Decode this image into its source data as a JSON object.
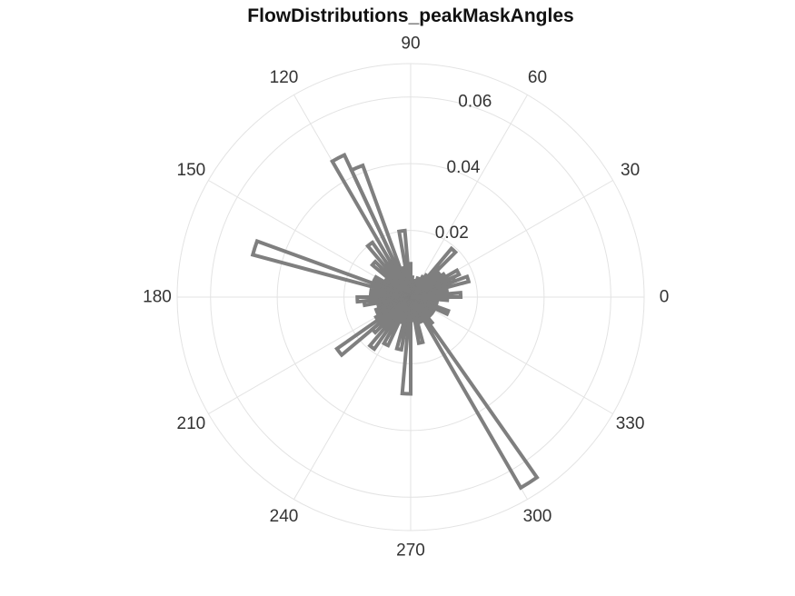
{
  "chart_data": {
    "type": "polar-histogram",
    "title": "FlowDistributions_peakMaskAngles",
    "theta_ticks": [
      "0",
      "30",
      "60",
      "90",
      "120",
      "150",
      "180",
      "210",
      "240",
      "270",
      "300",
      "330"
    ],
    "r_ticks": [
      "0.02",
      "0.04",
      "0.06"
    ],
    "r_tick_values": [
      0.02,
      0.04,
      0.06
    ],
    "rlim": [
      0,
      0.07
    ],
    "theta_zero": "right",
    "theta_direction": "counterclockwise",
    "grid": true,
    "series": [
      {
        "bin_edges_deg": [
          0,
          5,
          10,
          15,
          20,
          25,
          30,
          35,
          40,
          45,
          50,
          55,
          60,
          65,
          70,
          75,
          80,
          85,
          90,
          95,
          100,
          105,
          110,
          115,
          120,
          125,
          130,
          135,
          140,
          145,
          150,
          155,
          160,
          165,
          170,
          175,
          180,
          185,
          190,
          195,
          200,
          205,
          210,
          215,
          220,
          225,
          230,
          235,
          240,
          245,
          250,
          255,
          260,
          265,
          270,
          275,
          280,
          285,
          290,
          295,
          300,
          305,
          310,
          315,
          320,
          325,
          330,
          335,
          340,
          345,
          350,
          355,
          360
        ],
        "values": [
          0.015,
          0.011,
          0.007,
          0.018,
          0.014,
          0.016,
          0.012,
          0.01,
          0.011,
          0.019,
          0.008,
          0.007,
          0.006,
          0.006,
          0.005,
          0.005,
          0.005,
          0.006,
          0.01,
          0.02,
          0.008,
          0.009,
          0.042,
          0.047,
          0.012,
          0.02,
          0.008,
          0.015,
          0.009,
          0.008,
          0.012,
          0.012,
          0.049,
          0.009,
          0.012,
          0.008,
          0.016,
          0.014,
          0.009,
          0.01,
          0.011,
          0.011,
          0.012,
          0.027,
          0.015,
          0.012,
          0.019,
          0.008,
          0.016,
          0.008,
          0.008,
          0.016,
          0.01,
          0.029,
          0.007,
          0.006,
          0.014,
          0.007,
          0.008,
          0.006,
          0.066,
          0.01,
          0.006,
          0.008,
          0.007,
          0.008,
          0.007,
          0.012,
          0.006,
          0.008,
          0.005,
          0.011
        ]
      }
    ]
  },
  "colors": {
    "bars": "#7f7f7f",
    "grid": "#e3e3e3",
    "text": "#333333",
    "title": "#111111"
  }
}
